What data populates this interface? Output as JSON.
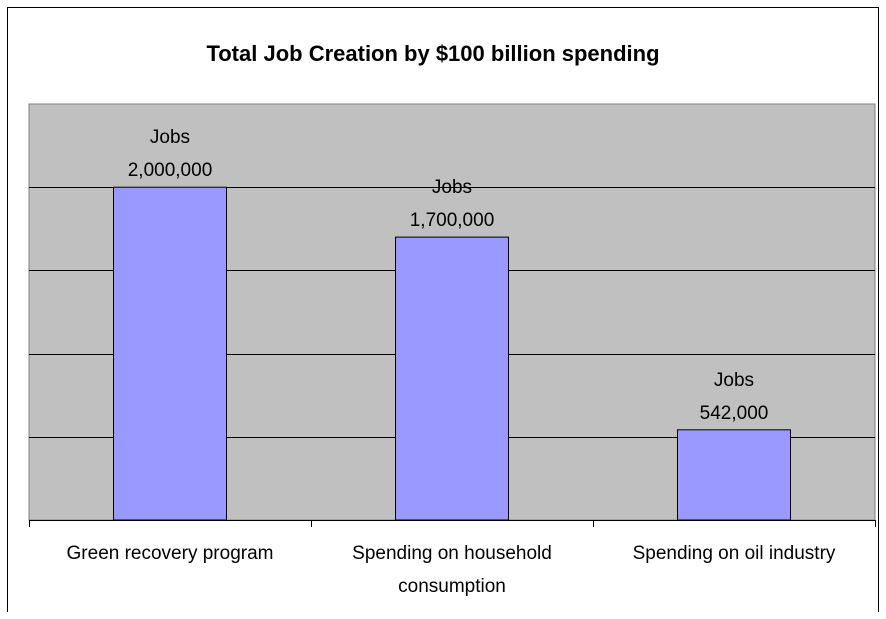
{
  "chart_data": {
    "type": "bar",
    "title": "Total Job Creation by $100 billion spending",
    "categories": [
      [
        "Green recovery program"
      ],
      [
        "Spending on household",
        "consumption"
      ],
      [
        "Spending on oil industry"
      ]
    ],
    "values": [
      2000000,
      1700000,
      542000
    ],
    "data_labels": [
      [
        "Jobs",
        "2,000,000"
      ],
      [
        "Jobs",
        "1,700,000"
      ],
      [
        "Jobs",
        "542,000"
      ]
    ],
    "ylim": [
      0,
      2500000
    ],
    "y_gridlines": [
      500000,
      1000000,
      1500000,
      2000000
    ],
    "grid": true,
    "legend": "none",
    "colors": {
      "bar_fill": "#9999ff",
      "bar_stroke": "#000000",
      "plot_background": "#c0c0c0",
      "gridline": "#000000"
    }
  }
}
